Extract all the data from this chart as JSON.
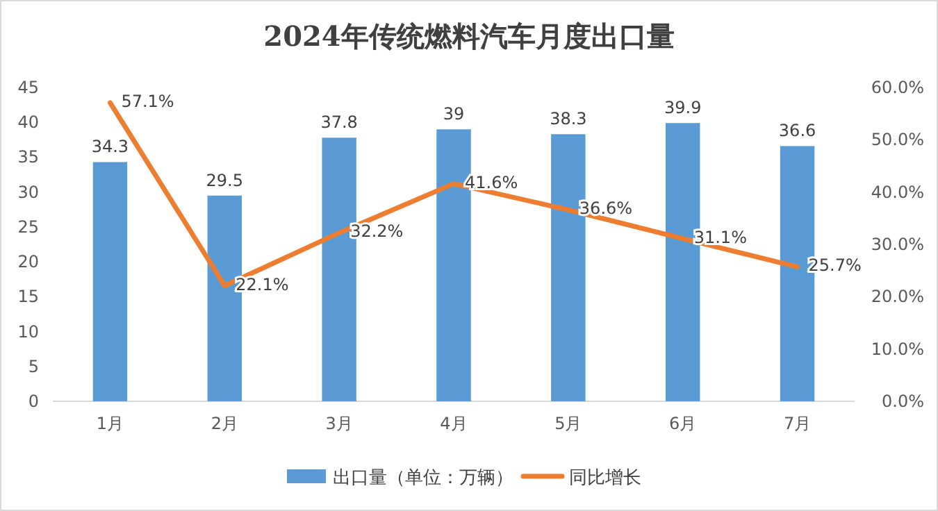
{
  "chart_data": {
    "type": "bar",
    "title": "2024年传统燃料汽车月度出口量",
    "categories": [
      "1月",
      "2月",
      "3月",
      "4月",
      "5月",
      "6月",
      "7月"
    ],
    "series": [
      {
        "name": "出口量（单位：万辆）",
        "color": "#5b9bd5",
        "values": [
          34.3,
          29.5,
          37.8,
          39,
          38.3,
          39.9,
          36.6
        ],
        "value_labels": [
          "34.3",
          "29.5",
          "37.8",
          "39",
          "38.3",
          "39.9",
          "36.6"
        ]
      },
      {
        "name": "同比增长",
        "type": "line",
        "axis": "y2",
        "color": "#ed7d31",
        "values": [
          57.1,
          22.1,
          32.2,
          41.6,
          36.6,
          31.1,
          25.7
        ],
        "value_labels": [
          "57.1%",
          "22.1%",
          "32.2%",
          "41.6%",
          "36.6%",
          "31.1%",
          "25.7%"
        ]
      }
    ],
    "ylim": [
      0,
      45
    ],
    "yticks": [
      0,
      5,
      10,
      15,
      20,
      25,
      30,
      35,
      40,
      45
    ],
    "y2lim": [
      0,
      60
    ],
    "y2ticks": [
      {
        "value": 0,
        "label": "0.0%"
      },
      {
        "value": 10,
        "label": "10.0%"
      },
      {
        "value": 20,
        "label": "20.0%"
      },
      {
        "value": 30,
        "label": "30.0%"
      },
      {
        "value": 40,
        "label": "40.0%"
      },
      {
        "value": 50,
        "label": "50.0%"
      },
      {
        "value": 60,
        "label": "60.0%"
      }
    ],
    "legend": "bottom",
    "marker": "none",
    "line_style": "solid"
  }
}
